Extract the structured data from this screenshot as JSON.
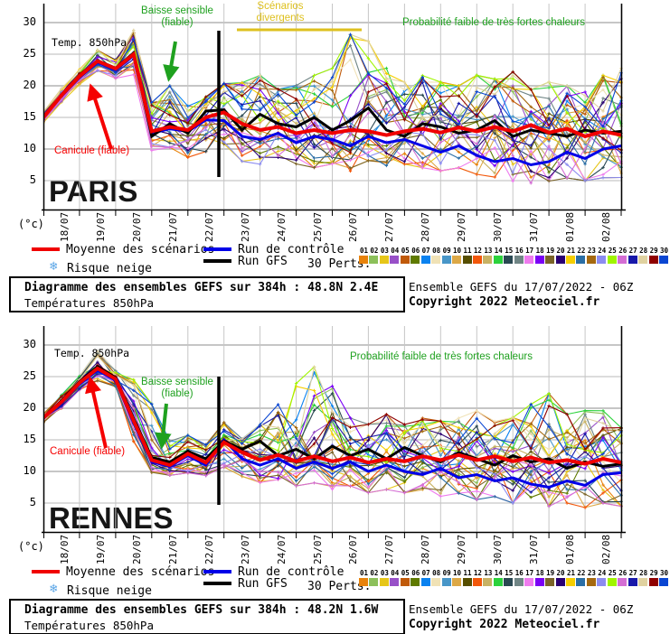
{
  "colors": {
    "mean": "#f00000",
    "control": "#0000e8",
    "gfs": "#000000",
    "grid": "#c6c6c6",
    "axis": "#000000",
    "annotation_green": "#1fa11f",
    "annotation_red": "#f50000",
    "annotation_yellow": "#dec01e",
    "snowflake": "#5aa5e6"
  },
  "legend": {
    "mean": "Moyenne des scénarios",
    "control": "Run de contrôle",
    "gfs": "Run GFS",
    "perts": "30 Perts.",
    "neige": "Risque neige",
    "snow_glyph": "❄"
  },
  "info_right": {
    "run": "Ensemble GEFS du 17/07/2022 - 06Z",
    "copyright": "Copyright 2022 Meteociel.fr"
  },
  "members": [
    {
      "label": "01",
      "color": "#e8820a"
    },
    {
      "label": "02",
      "color": "#8cc05a"
    },
    {
      "label": "03",
      "color": "#e6c619"
    },
    {
      "label": "04",
      "color": "#9850c8"
    },
    {
      "label": "05",
      "color": "#c05a0a"
    },
    {
      "label": "06",
      "color": "#5f7a00"
    },
    {
      "label": "07",
      "color": "#0a82f0"
    },
    {
      "label": "08",
      "color": "#f0e2b6"
    },
    {
      "label": "09",
      "color": "#4896c8"
    },
    {
      "label": "10",
      "color": "#dca846"
    },
    {
      "label": "11",
      "color": "#564e00"
    },
    {
      "label": "12",
      "color": "#f2570a"
    },
    {
      "label": "13",
      "color": "#c8b264"
    },
    {
      "label": "14",
      "color": "#2cd23c"
    },
    {
      "label": "15",
      "color": "#2a4852"
    },
    {
      "label": "16",
      "color": "#708585"
    },
    {
      "label": "17",
      "color": "#ee7bee"
    },
    {
      "label": "18",
      "color": "#7a00f5"
    },
    {
      "label": "19",
      "color": "#7a6428"
    },
    {
      "label": "20",
      "color": "#2a0073"
    },
    {
      "label": "21",
      "color": "#f5ce00"
    },
    {
      "label": "22",
      "color": "#2a6ea5"
    },
    {
      "label": "23",
      "color": "#a5690f"
    },
    {
      "label": "24",
      "color": "#8c8cf0"
    },
    {
      "label": "25",
      "color": "#a0f500"
    },
    {
      "label": "26",
      "color": "#d46ed4"
    },
    {
      "label": "27",
      "color": "#1919aa"
    },
    {
      "label": "28",
      "color": "#e0d2a0"
    },
    {
      "label": "29",
      "color": "#8f0000"
    },
    {
      "label": "30",
      "color": "#0a46d2"
    }
  ],
  "chart_data": [
    {
      "type": "line",
      "title": "PARIS",
      "y_units": "(°c)",
      "yticks": [
        30,
        25,
        20,
        15,
        10,
        5
      ],
      "ylim": [
        3,
        31
      ],
      "x_hours_step": 12,
      "x_hours_max": 384,
      "x_tick_labels": [
        "18/07",
        "19/07",
        "20/07",
        "21/07",
        "22/07",
        "23/07",
        "24/07",
        "25/07",
        "26/07",
        "27/07",
        "28/07",
        "29/07",
        "30/07",
        "31/07",
        "01/08",
        "02/08"
      ],
      "n_members": 30,
      "info": {
        "title": "Diagramme des ensembles GEFS sur 384h : 48.8N 2.4E",
        "subtitle": "Températures 850hPa"
      },
      "annotations": {
        "temp": "Temp. 850hPa",
        "canicule": "Canicule (fiable)",
        "baisse_l1": "Baisse sensible",
        "baisse_l2": "(fiable)",
        "scenarios_l1": "Scénarios",
        "scenarios_l2": "divergents",
        "probabilite": "Probabilité faible de très fortes chaleurs"
      },
      "series": {
        "mean": [
          15.0,
          18.5,
          21.5,
          23.9,
          22.7,
          25.0,
          12.8,
          13.5,
          13.0,
          15.0,
          15.8,
          14.0,
          13.0,
          13.5,
          12.5,
          13.0,
          12.5,
          13.0,
          12.8,
          12.2,
          12.8,
          13.2,
          12.6,
          13.4,
          12.8,
          13.5,
          12.8,
          13.8,
          12.6,
          13.2,
          12.0,
          12.8,
          12.2
        ],
        "control": [
          15.0,
          18.4,
          21.3,
          23.7,
          22.5,
          24.8,
          12.5,
          13.2,
          12.8,
          14.6,
          14.5,
          12.0,
          11.5,
          12.5,
          11.0,
          12.0,
          11.5,
          10.5,
          12.0,
          11.0,
          11.5,
          10.5,
          9.5,
          10.5,
          9.0,
          8.0,
          8.5,
          7.5,
          8.0,
          9.5,
          8.5,
          10.0,
          10.5
        ],
        "gfs": [
          15.0,
          18.6,
          21.6,
          24.0,
          22.8,
          25.2,
          12.0,
          14.0,
          12.5,
          16.0,
          16.2,
          13.0,
          15.5,
          14.0,
          13.5,
          15.0,
          13.0,
          14.5,
          16.5,
          13.0,
          12.0,
          14.0,
          13.5,
          12.5,
          13.0,
          14.5,
          12.0,
          13.0,
          12.5,
          12.0,
          13.0,
          12.5,
          12.8
        ],
        "env_min": [
          14.2,
          17.5,
          20.3,
          22.5,
          21.3,
          22.0,
          10.0,
          10.5,
          9.0,
          10.0,
          11.0,
          8.5,
          8.0,
          9.0,
          8.0,
          7.5,
          8.0,
          7.0,
          8.5,
          7.5,
          8.0,
          7.5,
          7.0,
          7.5,
          6.5,
          6.0,
          5.5,
          5.0,
          5.5,
          6.0,
          5.5,
          6.0,
          6.0
        ],
        "env_max": [
          15.8,
          19.5,
          22.5,
          25.5,
          24.0,
          28.5,
          17.0,
          19.5,
          16.5,
          18.0,
          20.0,
          20.0,
          21.0,
          19.0,
          19.5,
          21.0,
          22.0,
          27.0,
          26.0,
          22.0,
          20.0,
          21.0,
          20.0,
          19.5,
          21.0,
          20.5,
          21.5,
          19.0,
          20.0,
          19.5,
          18.5,
          21.0,
          22.0
        ]
      }
    },
    {
      "type": "line",
      "title": "RENNES",
      "y_units": "(°c)",
      "yticks": [
        30,
        25,
        20,
        15,
        10,
        5
      ],
      "ylim": [
        3,
        31
      ],
      "x_hours_step": 12,
      "x_hours_max": 384,
      "x_tick_labels": [
        "18/07",
        "19/07",
        "20/07",
        "21/07",
        "22/07",
        "23/07",
        "24/07",
        "25/07",
        "26/07",
        "27/07",
        "28/07",
        "29/07",
        "30/07",
        "31/07",
        "01/08",
        "02/08"
      ],
      "n_members": 30,
      "info": {
        "title": "Diagramme des ensembles GEFS sur 384h : 48.2N 1.6W",
        "subtitle": "Températures 850hPa"
      },
      "annotations": {
        "temp": "Temp. 850hPa",
        "canicule": "Canicule (fiable)",
        "baisse_l1": "Baisse sensible",
        "baisse_l2": "(fiable)",
        "probabilite": "Probabilité faible de très fortes chaleurs"
      },
      "series": {
        "mean": [
          18.5,
          21.0,
          24.0,
          26.3,
          24.6,
          18.0,
          11.8,
          11.0,
          12.8,
          11.4,
          14.6,
          13.0,
          11.8,
          12.6,
          11.6,
          12.4,
          11.6,
          12.2,
          11.4,
          12.0,
          11.6,
          12.4,
          11.8,
          12.6,
          11.8,
          12.4,
          11.6,
          12.2,
          11.4,
          11.8,
          11.2,
          12.0,
          11.4
        ],
        "control": [
          18.5,
          20.8,
          23.8,
          26.0,
          24.4,
          17.6,
          11.5,
          10.8,
          12.5,
          11.0,
          15.0,
          12.0,
          11.0,
          12.0,
          10.5,
          11.5,
          10.5,
          11.5,
          10.0,
          11.0,
          10.0,
          9.5,
          10.5,
          9.0,
          9.5,
          8.5,
          9.0,
          8.0,
          7.5,
          8.5,
          7.8,
          9.5,
          9.8
        ],
        "gfs": [
          18.5,
          21.2,
          24.2,
          26.6,
          24.8,
          18.4,
          12.2,
          11.5,
          13.2,
          12.0,
          14.8,
          13.5,
          14.8,
          12.5,
          13.5,
          12.0,
          14.0,
          12.5,
          13.5,
          12.0,
          13.8,
          12.5,
          11.5,
          13.0,
          12.0,
          11.0,
          12.5,
          11.5,
          12.0,
          10.5,
          11.5,
          10.8,
          11.2
        ],
        "env_min": [
          17.8,
          20.0,
          23.0,
          24.5,
          23.5,
          15.0,
          10.0,
          9.5,
          10.0,
          9.5,
          11.0,
          9.5,
          8.5,
          9.0,
          8.0,
          8.5,
          7.5,
          8.0,
          7.0,
          7.5,
          7.0,
          7.5,
          6.5,
          7.0,
          6.0,
          6.5,
          5.5,
          6.0,
          5.0,
          5.5,
          4.8,
          5.5,
          5.0
        ],
        "env_max": [
          19.2,
          22.0,
          25.0,
          28.8,
          25.8,
          24.0,
          20.0,
          14.5,
          15.5,
          14.0,
          17.5,
          15.0,
          17.0,
          20.0,
          23.0,
          25.5,
          24.0,
          18.0,
          17.0,
          18.5,
          17.0,
          18.0,
          17.5,
          18.0,
          19.0,
          17.5,
          18.0,
          20.0,
          21.5,
          18.5,
          19.0,
          19.5,
          16.5
        ]
      }
    }
  ]
}
